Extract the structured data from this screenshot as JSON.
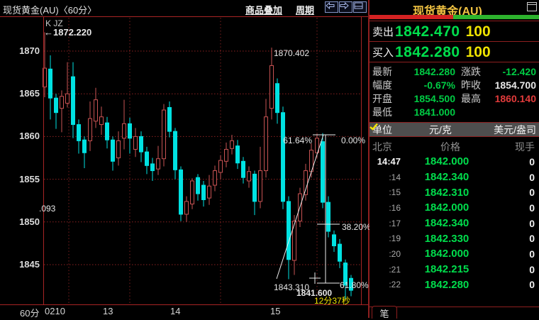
{
  "header": {
    "title": "现货黄金(AU)〈60分〉",
    "menu_overlay": "商品叠加",
    "menu_period": "周期"
  },
  "chart": {
    "indicator_label": "K JZ",
    "high_annotation": "←1872.220",
    "left_clipped_annotation": ".093",
    "spike_label": "1870.402",
    "period_label": "60分",
    "fib": {
      "pct_61_64": "61.64%",
      "pct_0": "0.00%",
      "pct_38_2": "38.20%",
      "pct_61_8": "61.80%",
      "low_label": "1843.310",
      "cursor_price": "1841.600",
      "countdown": "12分37秒"
    }
  },
  "chart_data": {
    "type": "candlestick",
    "symbol": "现货黄金(AU)",
    "period": "60分",
    "title": "现货黄金(AU)〈60分〉",
    "y_ticks": [
      1870,
      1865,
      1860,
      1855,
      1850,
      1845
    ],
    "ylim": [
      1838.5,
      1874.0
    ],
    "x_tick_labels": [
      {
        "text": "0210",
        "x": 63
      },
      {
        "text": "13",
        "x": 145
      },
      {
        "text": "14",
        "x": 240
      },
      {
        "text": "15",
        "x": 381
      }
    ],
    "day_boundaries_x": [
      97,
      183,
      311,
      447
    ],
    "grid": "dotted-red",
    "up_color": "#c85353",
    "down_color": "#00e2e2",
    "candles_ohlc": [
      [
        1865.8,
        1872.2,
        1864.6,
        1868.0
      ],
      [
        1867.9,
        1869.5,
        1862.0,
        1864.5
      ],
      [
        1864.5,
        1865.0,
        1860.9,
        1862.8
      ],
      [
        1863.3,
        1865.4,
        1860.5,
        1864.7
      ],
      [
        1863.9,
        1868.7,
        1863.4,
        1865.0
      ],
      [
        1867.0,
        1868.7,
        1859.8,
        1861.4
      ],
      [
        1861.4,
        1862.0,
        1858.0,
        1859.5
      ],
      [
        1859.6,
        1860.0,
        1856.3,
        1858.1
      ],
      [
        1859.5,
        1864.1,
        1858.3,
        1862.1
      ],
      [
        1861.8,
        1865.7,
        1861.0,
        1864.3
      ],
      [
        1861.4,
        1863.5,
        1860.2,
        1862.3
      ],
      [
        1861.6,
        1862.3,
        1858.6,
        1859.6
      ],
      [
        1859.6,
        1860.0,
        1856.0,
        1857.1
      ],
      [
        1857.5,
        1860.6,
        1856.6,
        1859.5
      ],
      [
        1859.8,
        1864.3,
        1858.5,
        1861.5
      ],
      [
        1861.5,
        1862.2,
        1858.0,
        1859.8
      ],
      [
        1858.5,
        1861.0,
        1857.6,
        1860.0
      ],
      [
        1860.0,
        1860.6,
        1857.0,
        1858.2
      ],
      [
        1858.2,
        1858.8,
        1855.6,
        1856.6
      ],
      [
        1856.8,
        1857.5,
        1854.8,
        1856.0
      ],
      [
        1856.2,
        1858.9,
        1855.5,
        1857.4
      ],
      [
        1857.4,
        1863.8,
        1856.5,
        1863.1
      ],
      [
        1863.4,
        1864.1,
        1859.9,
        1860.6
      ],
      [
        1860.6,
        1861.0,
        1855.0,
        1856.1
      ],
      [
        1856.1,
        1856.5,
        1850.1,
        1850.9
      ],
      [
        1850.9,
        1853.0,
        1850.0,
        1852.4
      ],
      [
        1852.1,
        1855.1,
        1851.5,
        1854.8
      ],
      [
        1855.2,
        1855.6,
        1852.5,
        1853.3
      ],
      [
        1854.3,
        1854.8,
        1851.8,
        1852.6
      ],
      [
        1852.8,
        1855.5,
        1852.0,
        1854.2
      ],
      [
        1854.3,
        1856.6,
        1853.6,
        1856.0
      ],
      [
        1855.8,
        1857.8,
        1855.0,
        1857.2
      ],
      [
        1857.1,
        1859.3,
        1856.4,
        1858.5
      ],
      [
        1858.6,
        1860.2,
        1857.9,
        1859.5
      ],
      [
        1858.9,
        1859.6,
        1856.2,
        1856.9
      ],
      [
        1857.1,
        1857.6,
        1854.5,
        1855.2
      ],
      [
        1854.8,
        1856.5,
        1854.0,
        1855.9
      ],
      [
        1855.6,
        1856.0,
        1850.8,
        1852.4
      ],
      [
        1852.4,
        1858.8,
        1851.6,
        1856.0
      ],
      [
        1856.0,
        1864.4,
        1855.2,
        1862.3
      ],
      [
        1863.3,
        1870.4,
        1862.0,
        1868.3
      ],
      [
        1866.2,
        1866.8,
        1861.5,
        1862.8
      ],
      [
        1862.8,
        1863.5,
        1851.5,
        1852.4
      ],
      [
        1852.4,
        1853.0,
        1843.3,
        1845.6
      ],
      [
        1845.5,
        1850.8,
        1843.8,
        1850.1
      ],
      [
        1850.1,
        1854.0,
        1849.4,
        1853.3
      ],
      [
        1853.2,
        1856.8,
        1852.5,
        1856.0
      ],
      [
        1855.9,
        1859.2,
        1855.2,
        1858.4
      ],
      [
        1858.1,
        1860.3,
        1857.5,
        1859.8
      ],
      [
        1859.4,
        1860.4,
        1851.6,
        1852.3
      ],
      [
        1852.3,
        1853.0,
        1848.2,
        1848.9
      ],
      [
        1848.5,
        1849.0,
        1846.5,
        1847.2
      ],
      [
        1847.4,
        1848.0,
        1844.6,
        1845.4
      ],
      [
        1845.2,
        1845.6,
        1841.0,
        1842.6
      ],
      [
        1843.4,
        1843.8,
        1841.3,
        1842.0
      ]
    ],
    "fib_annotations": {
      "high": 1860.402,
      "low": 1843.31,
      "levels_pct": [
        0.0,
        38.2,
        61.8
      ]
    }
  },
  "panel": {
    "title": "现货黄金(AU)",
    "sell": {
      "label": "卖出",
      "price": "1842.470",
      "size": "100"
    },
    "buy": {
      "label": "买入",
      "price": "1842.280",
      "size": "100"
    },
    "stats_rows": [
      [
        {
          "label": "最新",
          "value": "1842.280",
          "c": "g"
        },
        {
          "label": "涨跌",
          "value": "-12.420",
          "c": "g"
        }
      ],
      [
        {
          "label": "幅度",
          "value": "-0.67%",
          "c": "g"
        },
        {
          "label": "昨收",
          "value": "1854.700",
          "c": "w"
        }
      ],
      [
        {
          "label": "开盘",
          "value": "1854.500",
          "c": "g"
        },
        {
          "label": "最高",
          "value": "1860.140",
          "c": "r"
        }
      ],
      [
        {
          "label": "最低",
          "value": "1841.000",
          "c": "g"
        }
      ]
    ],
    "unit_row": {
      "label": "单位",
      "cny": "元/克",
      "usd": "美元/盎司"
    },
    "table": {
      "headers": [
        "北京",
        "价格",
        "现手"
      ],
      "rows": [
        [
          "14:47",
          "1842.000",
          "0"
        ],
        [
          ":14",
          "1842.340",
          "0"
        ],
        [
          ":15",
          "1842.310",
          "0"
        ],
        [
          ":16",
          "1842.000",
          "0"
        ],
        [
          ":17",
          "1842.340",
          "0"
        ],
        [
          ":19",
          "1842.330",
          "0"
        ],
        [
          ":20",
          "1842.000",
          "0"
        ],
        [
          ":21",
          "1842.215",
          "0"
        ],
        [
          ":22",
          "1842.280",
          "0"
        ]
      ]
    },
    "bottom_tab": "笔"
  }
}
